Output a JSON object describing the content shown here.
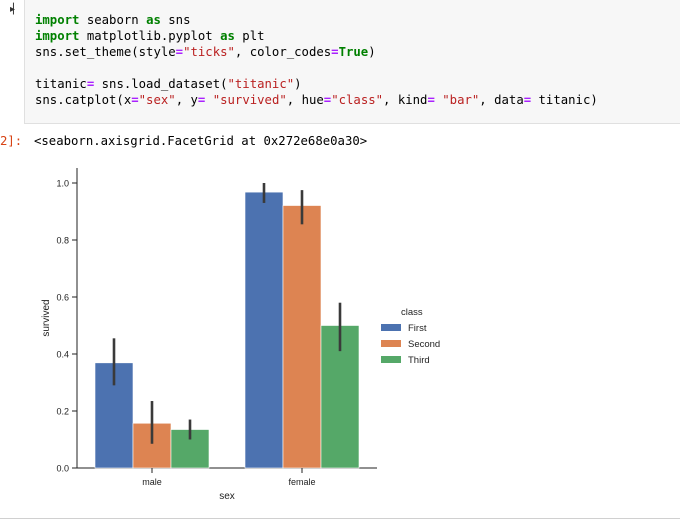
{
  "cell": {
    "run_icon": "▸▏",
    "code_lines": [
      [
        {
          "t": "import",
          "c": "kw"
        },
        {
          "t": " seaborn "
        },
        {
          "t": "as",
          "c": "kw"
        },
        {
          "t": " sns"
        }
      ],
      [
        {
          "t": "import",
          "c": "kw"
        },
        {
          "t": " matplotlib.pyplot "
        },
        {
          "t": "as",
          "c": "kw"
        },
        {
          "t": " plt"
        }
      ],
      [
        {
          "t": "sns.set_theme(style"
        },
        {
          "t": "=",
          "c": "eq"
        },
        {
          "t": "\"ticks\"",
          "c": "str"
        },
        {
          "t": ", color_codes"
        },
        {
          "t": "=",
          "c": "eq"
        },
        {
          "t": "True",
          "c": "bool"
        },
        {
          "t": ")"
        }
      ],
      [],
      [
        {
          "t": "titanic"
        },
        {
          "t": "=",
          "c": "eq"
        },
        {
          "t": " sns.load_dataset("
        },
        {
          "t": "\"titanic\"",
          "c": "str"
        },
        {
          "t": ")"
        }
      ],
      [
        {
          "t": "sns.catplot(x"
        },
        {
          "t": "=",
          "c": "eq"
        },
        {
          "t": "\"sex\"",
          "c": "str"
        },
        {
          "t": ", y"
        },
        {
          "t": "=",
          "c": "eq"
        },
        {
          "t": " "
        },
        {
          "t": "\"survived\"",
          "c": "str"
        },
        {
          "t": ", hue"
        },
        {
          "t": "=",
          "c": "eq"
        },
        {
          "t": "\"class\"",
          "c": "str"
        },
        {
          "t": ", kind"
        },
        {
          "t": "=",
          "c": "eq"
        },
        {
          "t": " "
        },
        {
          "t": "\"bar\"",
          "c": "str"
        },
        {
          "t": ", data"
        },
        {
          "t": "=",
          "c": "eq"
        },
        {
          "t": " titanic)"
        }
      ]
    ],
    "output_prompt": "2]:",
    "output_text": "<seaborn.axisgrid.FacetGrid at 0x272e68e0a30>"
  },
  "chart_data": {
    "type": "bar",
    "categories": [
      "male",
      "female"
    ],
    "series": [
      {
        "name": "First",
        "color": "#4c72b0",
        "values": [
          0.369,
          0.968
        ],
        "ci_low": [
          0.29,
          0.93
        ],
        "ci_high": [
          0.455,
          1.0
        ]
      },
      {
        "name": "Second",
        "color": "#dd8452",
        "values": [
          0.157,
          0.921
        ],
        "ci_low": [
          0.085,
          0.855
        ],
        "ci_high": [
          0.235,
          0.975
        ]
      },
      {
        "name": "Third",
        "color": "#55a868",
        "values": [
          0.135,
          0.5
        ],
        "ci_low": [
          0.1,
          0.41
        ],
        "ci_high": [
          0.17,
          0.58
        ]
      }
    ],
    "xlabel": "sex",
    "ylabel": "survived",
    "ylim": [
      0,
      1.0
    ],
    "yticks": [
      0.0,
      0.2,
      0.4,
      0.6,
      0.8,
      1.0
    ],
    "legend_title": "class",
    "legend_position": "right"
  }
}
